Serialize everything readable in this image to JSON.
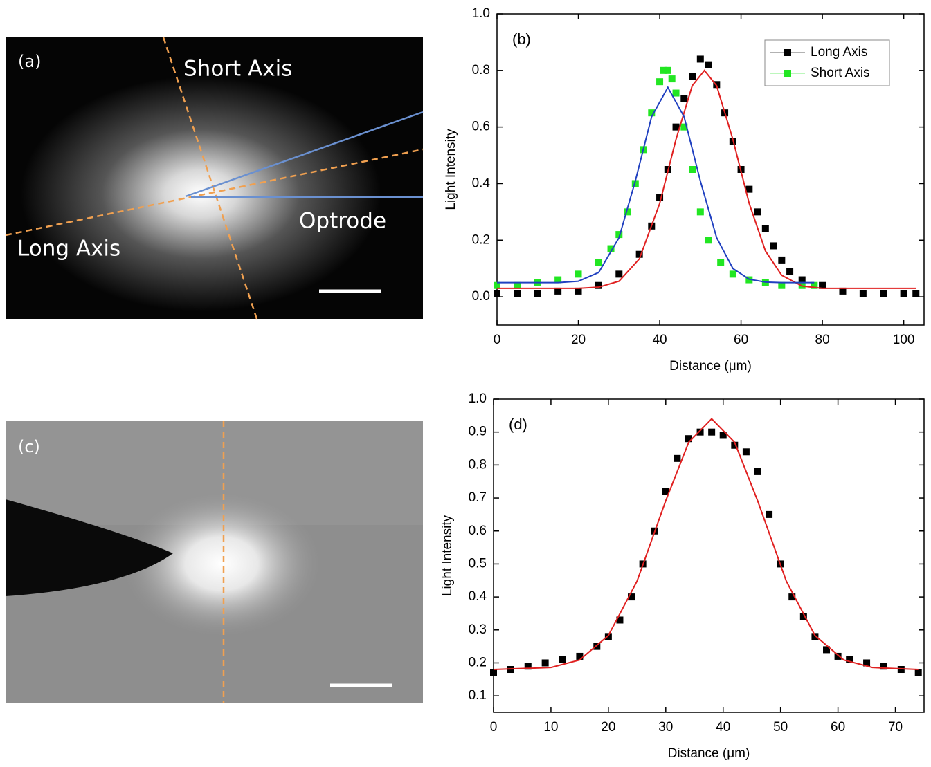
{
  "images": [
    {
      "label": "(a)",
      "texts": [
        "Short Axis",
        "Optrode",
        "Long Axis"
      ]
    },
    {
      "label": "(c)"
    }
  ],
  "chart_data": [
    {
      "type": "scatter",
      "panel_label": "(b)",
      "x_label": "Distance (μm)",
      "y_label": "Light Intensity",
      "xlim": [
        0,
        105
      ],
      "xticks": [
        0,
        20,
        40,
        60,
        80,
        100
      ],
      "ylim": [
        -0.1,
        1.0
      ],
      "yticks": [
        {
          "value": 0,
          "label": "0.0"
        },
        0.2,
        0.4,
        0.6,
        0.8,
        {
          "value": 1,
          "label": "1.0"
        }
      ],
      "legend": "upper right",
      "series": [
        {
          "name": "Long Axis",
          "color": "#000000",
          "mode": "markers",
          "x": [
            0,
            5,
            10,
            15,
            20,
            25,
            30,
            35,
            38,
            40,
            42,
            44,
            46,
            48,
            50,
            52,
            54,
            56,
            58,
            60,
            62,
            64,
            66,
            68,
            70,
            72,
            75,
            80,
            85,
            90,
            95,
            100,
            103
          ],
          "values": [
            0.01,
            0.01,
            0.01,
            0.02,
            0.02,
            0.04,
            0.08,
            0.15,
            0.25,
            0.35,
            0.45,
            0.6,
            0.7,
            0.78,
            0.84,
            0.82,
            0.75,
            0.65,
            0.55,
            0.45,
            0.38,
            0.3,
            0.24,
            0.18,
            0.13,
            0.09,
            0.06,
            0.04,
            0.02,
            0.01,
            0.01,
            0.01,
            0.01
          ]
        },
        {
          "name": "Short Axis",
          "color": "#22e622",
          "mode": "markers",
          "x": [
            0,
            5,
            10,
            15,
            20,
            25,
            28,
            30,
            32,
            34,
            36,
            38,
            40,
            41,
            42,
            43,
            44,
            46,
            48,
            50,
            52,
            55,
            58,
            62,
            66,
            70,
            75,
            78
          ],
          "values": [
            0.04,
            0.04,
            0.05,
            0.06,
            0.08,
            0.12,
            0.17,
            0.22,
            0.3,
            0.4,
            0.52,
            0.65,
            0.76,
            0.8,
            0.8,
            0.77,
            0.72,
            0.6,
            0.45,
            0.3,
            0.2,
            0.12,
            0.08,
            0.06,
            0.05,
            0.04,
            0.04,
            0.04
          ]
        },
        {
          "color": "#e02020",
          "mode": "line",
          "x": [
            0,
            10,
            20,
            25,
            30,
            35,
            40,
            44,
            48,
            51,
            54,
            58,
            62,
            66,
            70,
            75,
            80,
            90,
            103
          ],
          "values": [
            0.03,
            0.03,
            0.03,
            0.034,
            0.055,
            0.134,
            0.33,
            0.556,
            0.746,
            0.8,
            0.746,
            0.556,
            0.33,
            0.162,
            0.076,
            0.038,
            0.03,
            0.03,
            0.03
          ]
        },
        {
          "color": "#2040c0",
          "mode": "line",
          "x": [
            0,
            15,
            20,
            25,
            30,
            34,
            38,
            42,
            46,
            50,
            54,
            58,
            62,
            66,
            70,
            78
          ],
          "values": [
            0.05,
            0.05,
            0.055,
            0.086,
            0.209,
            0.409,
            0.636,
            0.74,
            0.636,
            0.409,
            0.209,
            0.1,
            0.062,
            0.052,
            0.05,
            0.05
          ]
        }
      ]
    },
    {
      "type": "scatter",
      "panel_label": "(d)",
      "x_label": "Distance (μm)",
      "y_label": "Light Intensity",
      "xlim": [
        0,
        75
      ],
      "xticks": [
        0,
        10,
        20,
        30,
        40,
        50,
        60,
        70
      ],
      "ylim": [
        0.05,
        1.0
      ],
      "yticks": [
        0.1,
        0.2,
        0.3,
        0.4,
        0.5,
        0.6,
        0.7,
        0.8,
        0.9,
        {
          "value": 1,
          "label": "1.0"
        }
      ],
      "series": [
        {
          "color": "#000000",
          "mode": "markers",
          "x": [
            0,
            3,
            6,
            9,
            12,
            15,
            18,
            20,
            22,
            24,
            26,
            28,
            30,
            32,
            34,
            36,
            38,
            40,
            42,
            44,
            46,
            48,
            50,
            52,
            54,
            56,
            58,
            60,
            62,
            65,
            68,
            71,
            74
          ],
          "values": [
            0.17,
            0.18,
            0.19,
            0.2,
            0.21,
            0.22,
            0.25,
            0.28,
            0.33,
            0.4,
            0.5,
            0.6,
            0.72,
            0.82,
            0.88,
            0.9,
            0.9,
            0.89,
            0.86,
            0.84,
            0.78,
            0.65,
            0.5,
            0.4,
            0.34,
            0.28,
            0.24,
            0.22,
            0.21,
            0.2,
            0.19,
            0.18,
            0.17
          ]
        },
        {
          "color": "#e02020",
          "mode": "line",
          "x": [
            0,
            10,
            15,
            20,
            25,
            30,
            34,
            38,
            42,
            46,
            51,
            56,
            61,
            66,
            74
          ],
          "values": [
            0.18,
            0.186,
            0.209,
            0.283,
            0.448,
            0.692,
            0.869,
            0.94,
            0.869,
            0.692,
            0.448,
            0.283,
            0.209,
            0.186,
            0.18
          ]
        }
      ]
    }
  ]
}
